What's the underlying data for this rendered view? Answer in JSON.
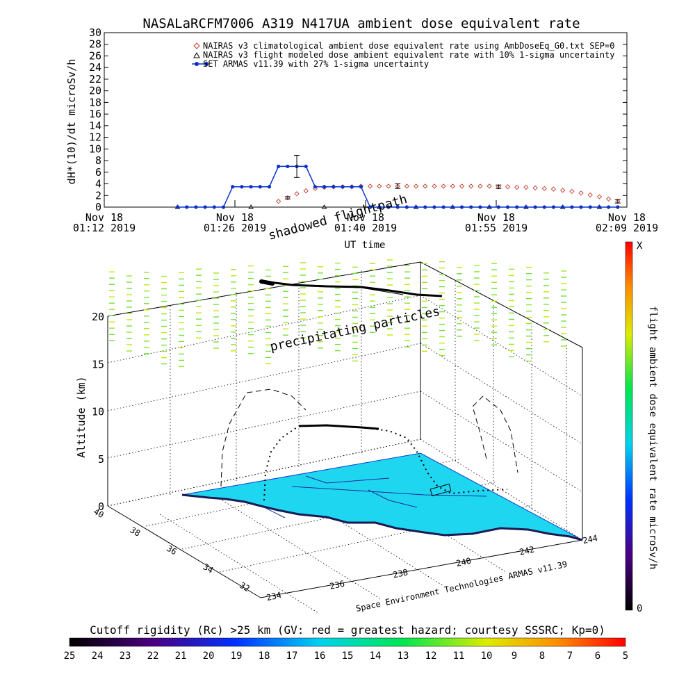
{
  "title": "NASALaRCFM7006  A319 N417UA ambient dose equivalent rate",
  "top_panel": {
    "ylabel": "dH*(10)/dt microSv/h",
    "xlabel": "UT time",
    "yticks": [
      "0",
      "2",
      "4",
      "6",
      "8",
      "10",
      "12",
      "14",
      "16",
      "18",
      "20",
      "22",
      "24",
      "26",
      "28",
      "30"
    ],
    "xticks": [
      {
        "line1": "Nov 18",
        "line2": "01:12 2019"
      },
      {
        "line1": "Nov 18",
        "line2": "01:26 2019"
      },
      {
        "line1": "Nov 18",
        "line2": "01:40 2019"
      },
      {
        "line1": "Nov 18",
        "line2": "01:55 2019"
      },
      {
        "line1": "Nov 18",
        "line2": "02:09 2019"
      }
    ],
    "legend": [
      "NAIRAS v3 climatological ambient dose equivalent rate using AmbDoseEq_G0.txt SEP=0",
      "NAIRAS v3 flight modeled dose ambient equivalent rate with 10% 1-sigma uncertainty",
      "SET ARMAS v11.39 with 27% 1-sigma uncertainty"
    ]
  },
  "annotations": {
    "shadowed": "shadowed flightpath",
    "precipitating": "precipitating particles",
    "credit": "Space Environment Technologies ARMAS v11.39"
  },
  "three_d": {
    "zlabel": "Altitude (km)",
    "zticks": [
      "0",
      "5",
      "10",
      "15",
      "20"
    ],
    "lat_ticks": [
      "40",
      "38",
      "36",
      "34",
      "32"
    ],
    "lon_ticks": [
      "234",
      "236",
      "238",
      "240",
      "242",
      "244"
    ]
  },
  "right_colorbar": {
    "label": "flight ambient dose equivalent rate microSv/h",
    "max_label": "X",
    "min_label": "0"
  },
  "bottom_colorbar": {
    "label": "Cutoff rigidity (Rc) >25 km (GV: red = greatest hazard; courtesy SSSRC; Kp=0)",
    "ticks": [
      "25",
      "24",
      "23",
      "22",
      "21",
      "20",
      "19",
      "18",
      "17",
      "16",
      "15",
      "14",
      "13",
      "12",
      "11",
      "10",
      "9",
      "8",
      "7",
      "6",
      "5"
    ]
  },
  "chart_data": [
    {
      "type": "line",
      "title": "NASALaRCFM7006  A319 N417UA ambient dose equivalent rate",
      "xlabel": "UT time",
      "ylabel": "dH*(10)/dt microSv/h",
      "ylim": [
        0,
        30
      ],
      "xlim": [
        "01:12",
        "02:09"
      ],
      "grid": false,
      "legend_position": "top-right",
      "series": [
        {
          "name": "NAIRAS v3 climatological ambient dose equivalent rate using AmbDoseEq_G0.txt SEP=0",
          "marker": "diamond",
          "color": "#c0392b",
          "x": [
            "01:31",
            "01:32",
            "01:33",
            "01:34",
            "01:35",
            "01:36",
            "01:37",
            "01:38",
            "01:39",
            "01:40",
            "01:41",
            "01:42",
            "01:43",
            "01:44",
            "01:45",
            "01:46",
            "01:47",
            "01:48",
            "01:49",
            "01:50",
            "01:51",
            "01:52",
            "01:53",
            "01:54",
            "01:55",
            "01:56",
            "01:57",
            "01:58",
            "01:59",
            "02:00",
            "02:01",
            "02:02",
            "02:03",
            "02:04",
            "02:05",
            "02:06",
            "02:07",
            "02:08"
          ],
          "y": [
            1.0,
            1.6,
            2.3,
            2.8,
            3.2,
            3.4,
            3.5,
            3.5,
            3.5,
            3.6,
            3.6,
            3.6,
            3.6,
            3.6,
            3.6,
            3.6,
            3.6,
            3.6,
            3.6,
            3.6,
            3.6,
            3.6,
            3.6,
            3.6,
            3.5,
            3.5,
            3.4,
            3.4,
            3.3,
            3.2,
            3.1,
            2.9,
            2.7,
            2.4,
            2.1,
            1.8,
            1.4,
            1.0
          ]
        },
        {
          "name": "NAIRAS v3 flight modeled dose ambient equivalent rate with 10% 1-sigma uncertainty",
          "marker": "triangle",
          "color": "#000000",
          "x": [
            "01:20",
            "01:28",
            "01:36",
            "01:42",
            "01:46",
            "01:50",
            "01:54",
            "01:58",
            "02:02",
            "02:06"
          ],
          "y": [
            0.0,
            0.0,
            0.0,
            0.0,
            0.0,
            0.0,
            0.0,
            0.0,
            0.0,
            0.0
          ]
        },
        {
          "name": "SET ARMAS v11.39 with 27% 1-sigma uncertainty",
          "marker": "circle",
          "color": "#0a32c8",
          "x": [
            "01:20",
            "01:21",
            "01:22",
            "01:23",
            "01:24",
            "01:25",
            "01:26",
            "01:27",
            "01:28",
            "01:29",
            "01:30",
            "01:31",
            "01:32",
            "01:33",
            "01:34",
            "01:35",
            "01:36",
            "01:37",
            "01:38",
            "01:39",
            "01:40",
            "01:41",
            "01:42",
            "01:43",
            "01:44",
            "01:45",
            "01:46",
            "01:47",
            "01:48",
            "01:49",
            "01:50",
            "01:51",
            "01:52",
            "01:53",
            "01:54",
            "01:55",
            "01:56",
            "01:57",
            "01:58",
            "01:59",
            "02:00",
            "02:01",
            "02:02",
            "02:03",
            "02:04",
            "02:05",
            "02:06",
            "02:07",
            "02:08"
          ],
          "y": [
            0,
            0,
            0,
            0,
            0,
            0,
            3.5,
            3.5,
            3.5,
            3.5,
            3.5,
            7.0,
            7.0,
            7.0,
            7.0,
            3.5,
            3.5,
            3.5,
            3.5,
            3.5,
            3.5,
            0,
            0,
            0,
            0,
            0,
            0,
            0,
            0,
            0,
            0,
            0,
            0,
            0,
            0,
            0,
            0,
            0,
            0,
            0,
            0,
            0,
            0,
            0,
            0,
            0,
            0,
            0,
            0
          ]
        }
      ]
    }
  ]
}
